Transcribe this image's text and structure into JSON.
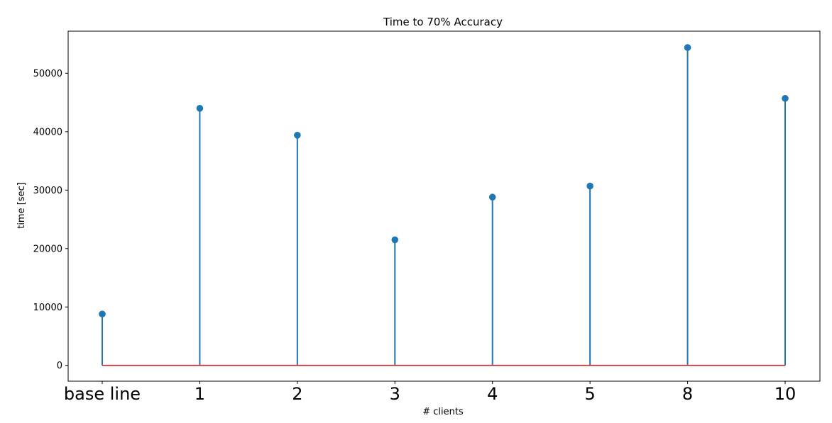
{
  "chart_data": {
    "type": "stem",
    "title": "Time to 70% Accuracy",
    "xlabel": "# clients",
    "ylabel": "time [sec]",
    "categories": [
      "base line",
      "1",
      "2",
      "3",
      "4",
      "5",
      "8",
      "10"
    ],
    "values": [
      8800,
      44000,
      39400,
      21500,
      28800,
      30700,
      54400,
      45700
    ],
    "ylim": [
      -2700,
      57200
    ],
    "yticks": [
      0,
      10000,
      20000,
      30000,
      40000,
      50000
    ],
    "ytick_labels": [
      "0",
      "10000",
      "20000",
      "30000",
      "40000",
      "50000"
    ],
    "grid": false,
    "colors": {
      "stem": "#1f77b4",
      "marker": "#1f77b4",
      "baseline": "#d62728"
    }
  }
}
